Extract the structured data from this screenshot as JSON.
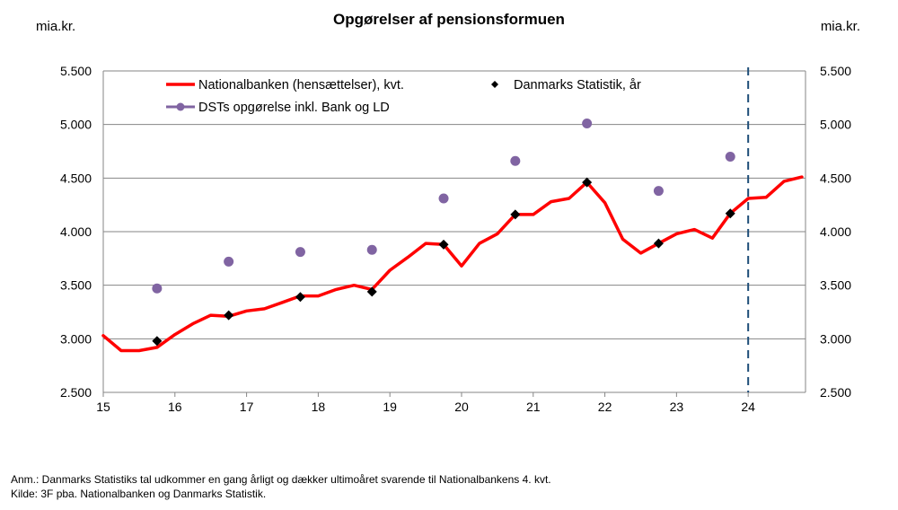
{
  "chart_data": {
    "type": "line",
    "title": "Opgørelser af pensionsformuen",
    "ylabel_left": "mia.kr.",
    "ylabel_right": "mia.kr.",
    "ylim": [
      2500,
      5500
    ],
    "ytick_values": [
      2500,
      3000,
      3500,
      4000,
      4500,
      5000,
      5500
    ],
    "ytick_labels": [
      "2.500",
      "3.000",
      "3.500",
      "4.000",
      "4.500",
      "5.000",
      "5.500"
    ],
    "xlim": [
      15,
      24.8
    ],
    "xtick_values": [
      15,
      16,
      17,
      18,
      19,
      20,
      21,
      22,
      23,
      24
    ],
    "xtick_labels": [
      "15",
      "16",
      "17",
      "18",
      "19",
      "20",
      "21",
      "22",
      "23",
      "24"
    ],
    "grid": "horizontal",
    "legend_position": "top",
    "vline_x": 24,
    "series": [
      {
        "name": "Nationalbanken (hensættelser), kvt.",
        "kind": "line",
        "color": "#ff0000",
        "x": [
          15,
          15.25,
          15.5,
          15.75,
          16,
          16.25,
          16.5,
          16.75,
          17,
          17.25,
          17.5,
          17.75,
          18,
          18.25,
          18.5,
          18.75,
          19,
          19.25,
          19.5,
          19.75,
          20,
          20.25,
          20.5,
          20.75,
          21,
          21.25,
          21.5,
          21.75,
          22,
          22.25,
          22.5,
          22.75,
          23,
          23.25,
          23.5,
          23.75,
          24,
          24.25,
          24.5,
          24.75
        ],
        "y": [
          3030,
          2890,
          2890,
          2920,
          3040,
          3140,
          3220,
          3210,
          3260,
          3280,
          3340,
          3400,
          3400,
          3460,
          3500,
          3460,
          3640,
          3760,
          3890,
          3880,
          3680,
          3890,
          3980,
          4160,
          4160,
          4280,
          4310,
          4460,
          4270,
          3930,
          3800,
          3890,
          3980,
          4020,
          3940,
          4170,
          4310,
          4320,
          4470,
          4510
        ]
      },
      {
        "name": "Danmarks Statistik, år",
        "kind": "diamond",
        "color": "#000000",
        "x": [
          15.75,
          16.75,
          17.75,
          18.75,
          19.75,
          20.75,
          21.75,
          22.75,
          23.75
        ],
        "y": [
          2980,
          3220,
          3390,
          3440,
          3880,
          4160,
          4460,
          3890,
          4170
        ]
      },
      {
        "name": "DSTs opgørelse inkl.  Bank og LD",
        "kind": "circle",
        "color": "#8064a2",
        "x": [
          15.75,
          16.75,
          17.75,
          18.75,
          19.75,
          20.75,
          21.75,
          22.75,
          23.75
        ],
        "y": [
          3470,
          3720,
          3810,
          3830,
          4310,
          4660,
          5010,
          4380,
          4700
        ]
      }
    ]
  },
  "notes": {
    "line1": "Anm.: Danmarks Statistiks tal udkommer en gang årligt og dækker ultimoåret svarende til Nationalbankens 4. kvt.",
    "line2": "Kilde: 3F pba. Nationalbanken og Danmarks Statistik."
  }
}
